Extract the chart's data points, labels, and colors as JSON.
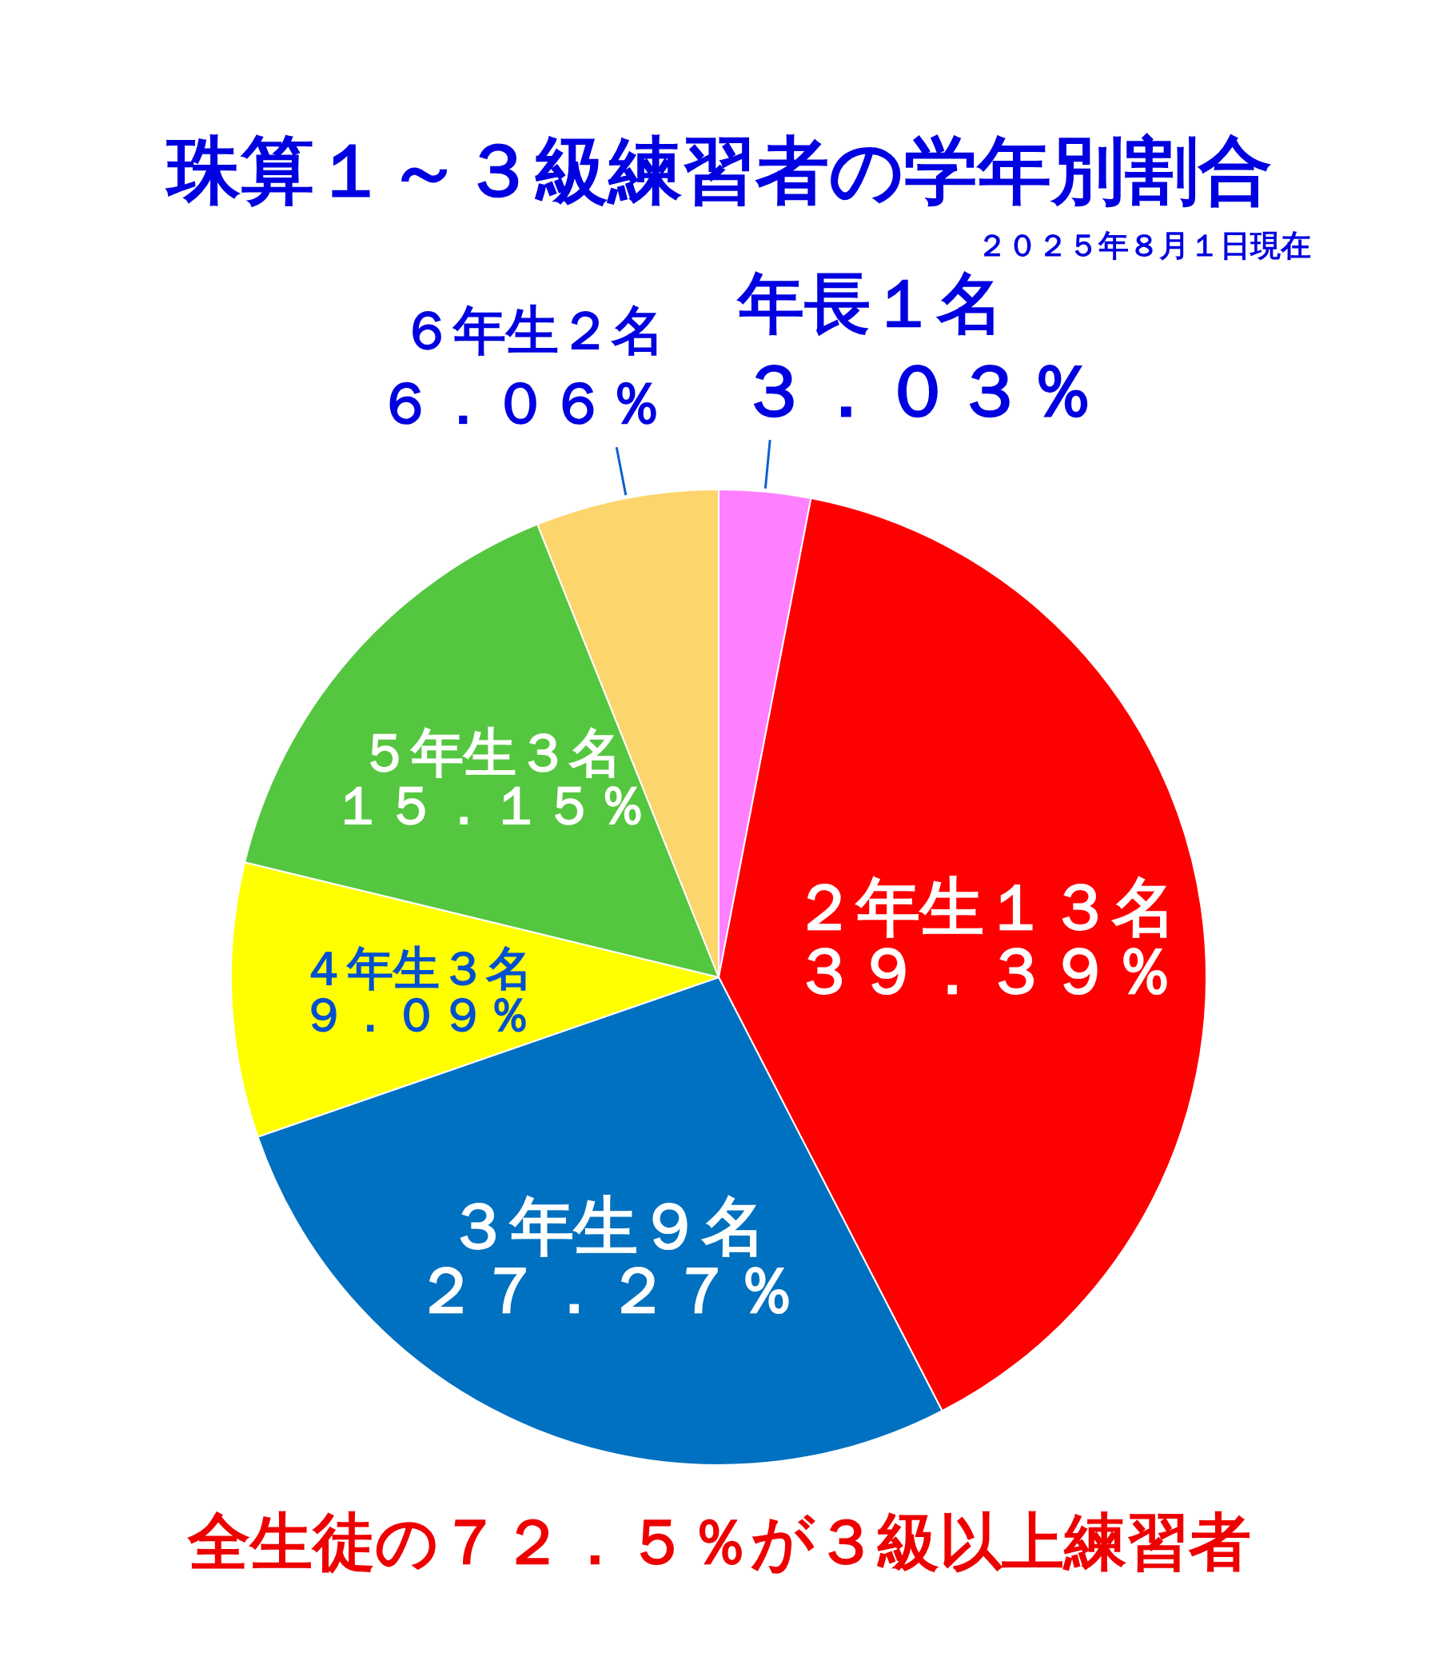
{
  "chart_data": {
    "type": "pie",
    "title": "珠算１～３級練習者の学年別割合",
    "subtitle": "２０２５年８月１日現在",
    "categories": [
      "年長１名",
      "２年生１３名",
      "３年生９名",
      "４年生３名",
      "５年生３名",
      "６年生２名"
    ],
    "values": [
      3.03,
      39.39,
      27.27,
      9.09,
      15.15,
      6.06
    ],
    "value_labels": [
      "３．０３％",
      "３９．３９％",
      "２７．２７％",
      "９．０９％",
      "１５．１５％",
      "６．０６％"
    ],
    "colors": [
      "#ff80ff",
      "#ff0000",
      "#0070c0",
      "#ffff00",
      "#55c63f",
      "#fcd56c"
    ],
    "annotations": [
      "全生徒の７２．５％が３級以上練習者"
    ]
  }
}
